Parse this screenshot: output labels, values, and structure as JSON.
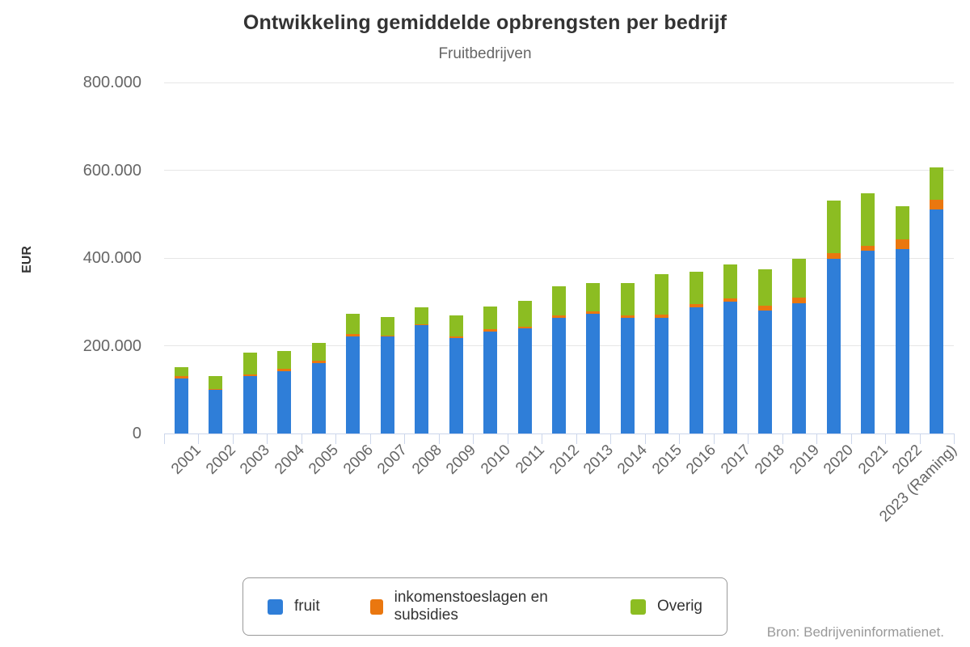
{
  "chart_data": {
    "type": "bar",
    "stacked": true,
    "title": "Ontwikkeling gemiddelde opbrengsten per bedrijf",
    "subtitle": "Fruitbedrijven",
    "ylabel": "EUR",
    "ylim": [
      0,
      800000
    ],
    "grid": true,
    "legend_position": "bottom",
    "y_ticks": [
      {
        "value": 0,
        "label": "0"
      },
      {
        "value": 200000,
        "label": "200.000"
      },
      {
        "value": 400000,
        "label": "400.000"
      },
      {
        "value": 600000,
        "label": "600.000"
      },
      {
        "value": 800000,
        "label": "800.000"
      }
    ],
    "categories": [
      "2001",
      "2002",
      "2003",
      "2004",
      "2005",
      "2006",
      "2007",
      "2008",
      "2009",
      "2010",
      "2011",
      "2012",
      "2013",
      "2014",
      "2015",
      "2016",
      "2017",
      "2018",
      "2019",
      "2020",
      "2021",
      "2022",
      "2023 (Raming)"
    ],
    "series": [
      {
        "name": "fruit",
        "color": "#2f7ed8",
        "values": [
          126000,
          100000,
          130000,
          142000,
          160000,
          221000,
          221000,
          247000,
          217000,
          232000,
          239000,
          263000,
          272000,
          263000,
          263000,
          287000,
          301000,
          280000,
          297000,
          399000,
          416000,
          421000,
          510000
        ]
      },
      {
        "name": "inkomenstoeslagen en subsidies",
        "color": "#ea770f",
        "values": [
          5000,
          2000,
          5000,
          5000,
          5000,
          6000,
          2000,
          2000,
          5000,
          6000,
          4000,
          7000,
          6000,
          7000,
          8000,
          8000,
          7000,
          11000,
          12000,
          12000,
          12000,
          21000,
          22000
        ]
      },
      {
        "name": "Overig",
        "color": "#8cbd22",
        "values": [
          20000,
          28000,
          49000,
          41000,
          42000,
          45000,
          42000,
          39000,
          47000,
          52000,
          60000,
          65000,
          64000,
          72000,
          93000,
          73000,
          78000,
          84000,
          89000,
          120000,
          120000,
          76000,
          74000
        ]
      }
    ]
  },
  "source": "Bron: Bedrijveninformatienet.",
  "colors": {
    "axis_line": "#ccd6eb",
    "grid_line": "#e6e6e6",
    "tick_label": "#666666",
    "title": "#333333",
    "source_text": "#999999"
  }
}
